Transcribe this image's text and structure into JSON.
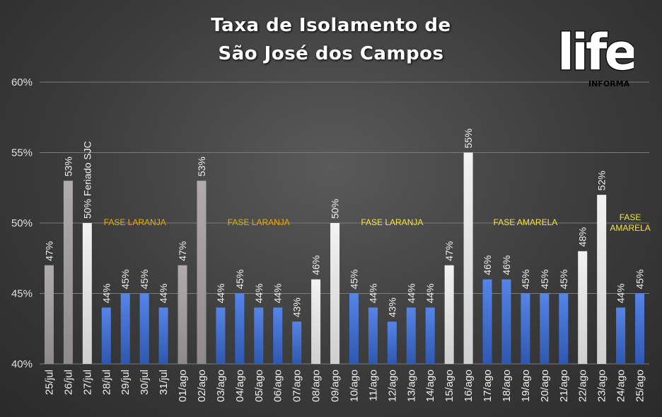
{
  "title_lines": [
    "Taxa de Isolamento de",
    "São José dos Campos"
  ],
  "logo": {
    "text": "life",
    "sub": "INFORMA"
  },
  "colors": {
    "gray": "#a09c9c",
    "light": "#e0e0e0",
    "blue": "#3f6fcf",
    "phase_orange": "#f2a900",
    "phase_yellow": "#f5e63a"
  },
  "chart_data": {
    "type": "bar",
    "title": "Taxa de Isolamento de São José dos Campos",
    "ylim": [
      40,
      60
    ],
    "yticks": [
      "40%",
      "45%",
      "50%",
      "55%",
      "60%"
    ],
    "grid": true,
    "categories": [
      "25/jul",
      "26/jul",
      "27/jul",
      "28/jul",
      "29/jul",
      "30/jul",
      "31/jul",
      "01/ago",
      "02/ago",
      "03/ago",
      "04/ago",
      "05/ago",
      "06/ago",
      "07/ago",
      "08/ago",
      "09/ago",
      "10/ago",
      "11/ago",
      "12/ago",
      "13/ago",
      "14/ago",
      "15/ago",
      "16/ago",
      "17/ago",
      "18/ago",
      "19/ago",
      "20/ago",
      "21/ago",
      "22/ago",
      "23/ago",
      "24/ago",
      "25/ago"
    ],
    "values": [
      47,
      53,
      50,
      44,
      45,
      45,
      44,
      47,
      53,
      44,
      45,
      44,
      44,
      43,
      46,
      50,
      45,
      44,
      43,
      44,
      44,
      47,
      55,
      46,
      46,
      45,
      45,
      45,
      48,
      52,
      44,
      45
    ],
    "labels": [
      "47%",
      "53%",
      "50% Feriado SJC",
      "44%",
      "45%",
      "45%",
      "44%",
      "47%",
      "53%",
      "44%",
      "45%",
      "44%",
      "44%",
      "43%",
      "46%",
      "50%",
      "45%",
      "44%",
      "43%",
      "44%",
      "44%",
      "47%",
      "55%",
      "46%",
      "46%",
      "45%",
      "45%",
      "45%",
      "48%",
      "52%",
      "44%",
      "45%"
    ],
    "bar_colors": [
      "gray",
      "gray",
      "light",
      "blue",
      "blue",
      "blue",
      "blue",
      "gray",
      "gray",
      "blue",
      "blue",
      "blue",
      "blue",
      "blue",
      "light",
      "light",
      "blue",
      "blue",
      "blue",
      "blue",
      "blue",
      "light",
      "light",
      "blue",
      "blue",
      "blue",
      "blue",
      "blue",
      "light",
      "light",
      "blue",
      "blue"
    ],
    "annotations": [
      {
        "lines": [
          "FASE LARANJA"
        ],
        "from": 3,
        "to": 6,
        "color": "phase_orange"
      },
      {
        "lines": [
          "FASE LARANJA"
        ],
        "from": 9,
        "to": 13,
        "color": "phase_orange"
      },
      {
        "lines": [
          "FASE LARANJA"
        ],
        "from": 16,
        "to": 20,
        "color": "phase_yellow"
      },
      {
        "lines": [
          "FASE AMARELA"
        ],
        "from": 23,
        "to": 27,
        "color": "phase_yellow"
      },
      {
        "lines": [
          "FASE",
          "AMARELA"
        ],
        "from": 30,
        "to": 31,
        "color": "phase_yellow"
      }
    ]
  }
}
